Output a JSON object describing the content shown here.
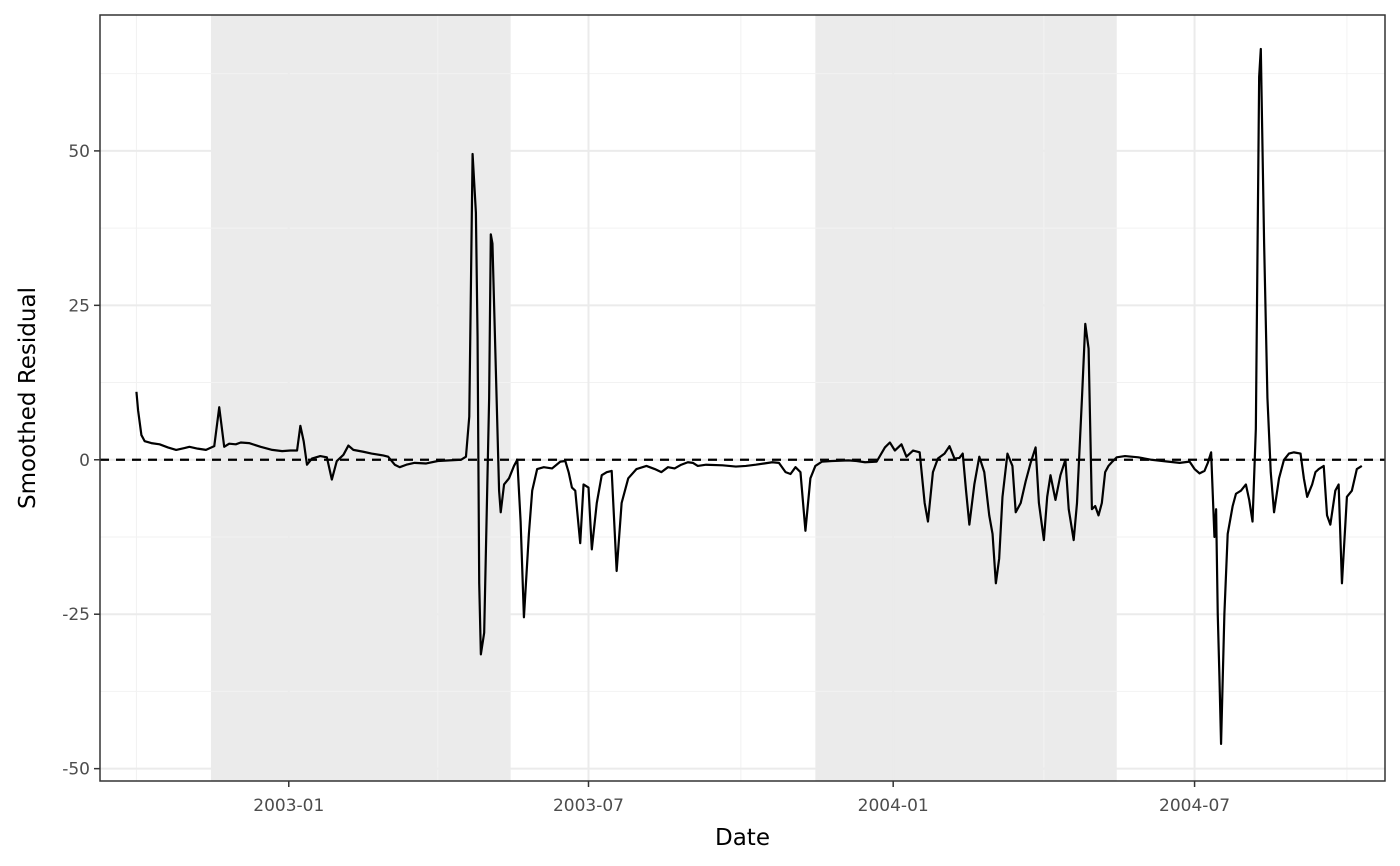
{
  "chart_data": {
    "type": "line",
    "xlabel": "Date",
    "ylabel": "Smoothed Residual",
    "x_ticks": [
      "2003-01",
      "2003-07",
      "2004-01",
      "2004-07"
    ],
    "y_ticks": [
      "-50",
      "-25",
      "0",
      "25",
      "50"
    ],
    "xlim": [
      "2002-09-09",
      "2004-10-24"
    ],
    "ylim": [
      -52,
      72
    ],
    "grid": true,
    "reference_line": {
      "y": 0,
      "style": "dashed",
      "color": "#000000"
    },
    "shaded_periods": [
      {
        "from": "2002-11-15",
        "to": "2003-05-15",
        "color": "#ebebeb"
      },
      {
        "from": "2003-11-15",
        "to": "2004-05-15",
        "color": "#ebebeb"
      }
    ],
    "series": [
      {
        "color": "#000000",
        "points": [
          [
            "2002-10-01",
            11
          ],
          [
            "2002-10-02",
            8
          ],
          [
            "2002-10-04",
            4
          ],
          [
            "2002-10-06",
            3
          ],
          [
            "2002-10-10",
            2.7
          ],
          [
            "2002-10-15",
            2.5
          ],
          [
            "2002-10-20",
            2
          ],
          [
            "2002-10-25",
            1.6
          ],
          [
            "2002-10-30",
            1.9
          ],
          [
            "2002-11-02",
            2.1
          ],
          [
            "2002-11-07",
            1.8
          ],
          [
            "2002-11-12",
            1.6
          ],
          [
            "2002-11-17",
            2.2
          ],
          [
            "2002-11-20",
            8.5
          ],
          [
            "2002-11-23",
            2.1
          ],
          [
            "2002-11-26",
            2.6
          ],
          [
            "2002-11-30",
            2.5
          ],
          [
            "2002-12-03",
            2.8
          ],
          [
            "2002-12-08",
            2.7
          ],
          [
            "2002-12-15",
            2.1
          ],
          [
            "2002-12-22",
            1.6
          ],
          [
            "2002-12-28",
            1.4
          ],
          [
            "2003-01-02",
            1.5
          ],
          [
            "2003-01-06",
            1.5
          ],
          [
            "2003-01-08",
            5.5
          ],
          [
            "2003-01-10",
            3
          ],
          [
            "2003-01-12",
            -0.8
          ],
          [
            "2003-01-15",
            0.2
          ],
          [
            "2003-01-20",
            0.6
          ],
          [
            "2003-01-24",
            0.4
          ],
          [
            "2003-01-27",
            -3.2
          ],
          [
            "2003-01-30",
            -0.2
          ],
          [
            "2003-02-03",
            0.8
          ],
          [
            "2003-02-06",
            2.3
          ],
          [
            "2003-02-09",
            1.6
          ],
          [
            "2003-02-15",
            1.3
          ],
          [
            "2003-02-20",
            1
          ],
          [
            "2003-02-27",
            0.7
          ],
          [
            "2003-03-02",
            0.5
          ],
          [
            "2003-03-06",
            -0.8
          ],
          [
            "2003-03-09",
            -1.2
          ],
          [
            "2003-03-13",
            -0.8
          ],
          [
            "2003-03-18",
            -0.5
          ],
          [
            "2003-03-25",
            -0.6
          ],
          [
            "2003-04-01",
            -0.2
          ],
          [
            "2003-04-08",
            -0.1
          ],
          [
            "2003-04-15",
            0
          ],
          [
            "2003-04-18",
            0.5
          ],
          [
            "2003-04-20",
            7
          ],
          [
            "2003-04-22",
            49.5
          ],
          [
            "2003-04-24",
            40
          ],
          [
            "2003-04-25",
            20
          ],
          [
            "2003-04-26",
            -20
          ],
          [
            "2003-04-27",
            -31.5
          ],
          [
            "2003-04-29",
            -28
          ],
          [
            "2003-05-02",
            10
          ],
          [
            "2003-05-03",
            36.5
          ],
          [
            "2003-05-04",
            35
          ],
          [
            "2003-05-06",
            15
          ],
          [
            "2003-05-08",
            -5
          ],
          [
            "2003-05-09",
            -8.5
          ],
          [
            "2003-05-11",
            -4
          ],
          [
            "2003-05-14",
            -3
          ],
          [
            "2003-05-17",
            -1
          ],
          [
            "2003-05-19",
            0
          ],
          [
            "2003-05-21",
            -10
          ],
          [
            "2003-05-23",
            -25.5
          ],
          [
            "2003-05-26",
            -12
          ],
          [
            "2003-05-28",
            -5
          ],
          [
            "2003-05-31",
            -1.5
          ],
          [
            "2003-06-04",
            -1.2
          ],
          [
            "2003-06-09",
            -1.4
          ],
          [
            "2003-06-14",
            -0.3
          ],
          [
            "2003-06-17",
            -0.2
          ],
          [
            "2003-06-19",
            -2
          ],
          [
            "2003-06-21",
            -4.5
          ],
          [
            "2003-06-23",
            -5
          ],
          [
            "2003-06-26",
            -13.5
          ],
          [
            "2003-06-28",
            -4
          ],
          [
            "2003-07-01",
            -4.5
          ],
          [
            "2003-07-03",
            -14.5
          ],
          [
            "2003-07-06",
            -7
          ],
          [
            "2003-07-09",
            -2.5
          ],
          [
            "2003-07-12",
            -2
          ],
          [
            "2003-07-15",
            -1.8
          ],
          [
            "2003-07-18",
            -18
          ],
          [
            "2003-07-21",
            -7
          ],
          [
            "2003-07-25",
            -3
          ],
          [
            "2003-07-30",
            -1.5
          ],
          [
            "2003-08-05",
            -1
          ],
          [
            "2003-08-10",
            -1.5
          ],
          [
            "2003-08-14",
            -2
          ],
          [
            "2003-08-18",
            -1.2
          ],
          [
            "2003-08-22",
            -1.4
          ],
          [
            "2003-08-26",
            -0.8
          ],
          [
            "2003-08-30",
            -0.4
          ],
          [
            "2003-09-02",
            -0.5
          ],
          [
            "2003-09-05",
            -1
          ],
          [
            "2003-09-10",
            -0.8
          ],
          [
            "2003-09-20",
            -0.9
          ],
          [
            "2003-09-28",
            -1.1
          ],
          [
            "2003-10-04",
            -1
          ],
          [
            "2003-10-10",
            -0.8
          ],
          [
            "2003-10-15",
            -0.6
          ],
          [
            "2003-10-20",
            -0.4
          ],
          [
            "2003-10-24",
            -0.5
          ],
          [
            "2003-10-28",
            -2
          ],
          [
            "2003-10-31",
            -2.3
          ],
          [
            "2003-11-03",
            -1.2
          ],
          [
            "2003-11-06",
            -2
          ],
          [
            "2003-11-09",
            -11.5
          ],
          [
            "2003-11-12",
            -3
          ],
          [
            "2003-11-15",
            -1
          ],
          [
            "2003-11-19",
            -0.3
          ],
          [
            "2003-11-25",
            -0.2
          ],
          [
            "2003-12-05",
            -0.1
          ],
          [
            "2003-12-10",
            -0.2
          ],
          [
            "2003-12-15",
            -0.4
          ],
          [
            "2003-12-22",
            -0.3
          ],
          [
            "2003-12-27",
            2
          ],
          [
            "2003-12-30",
            2.8
          ],
          [
            "2004-01-02",
            1.5
          ],
          [
            "2004-01-06",
            2.5
          ],
          [
            "2004-01-09",
            0.5
          ],
          [
            "2004-01-13",
            1.5
          ],
          [
            "2004-01-17",
            1.2
          ],
          [
            "2004-01-20",
            -7
          ],
          [
            "2004-01-22",
            -10
          ],
          [
            "2004-01-25",
            -2
          ],
          [
            "2004-01-28",
            0.2
          ],
          [
            "2004-02-01",
            1
          ],
          [
            "2004-02-04",
            2.2
          ],
          [
            "2004-02-07",
            0.2
          ],
          [
            "2004-02-10",
            0.3
          ],
          [
            "2004-02-12",
            1
          ],
          [
            "2004-02-14",
            -5
          ],
          [
            "2004-02-16",
            -10.5
          ],
          [
            "2004-02-19",
            -4
          ],
          [
            "2004-02-22",
            0.5
          ],
          [
            "2004-02-25",
            -2
          ],
          [
            "2004-02-28",
            -9
          ],
          [
            "2004-03-01",
            -12
          ],
          [
            "2004-03-03",
            -20
          ],
          [
            "2004-03-05",
            -16
          ],
          [
            "2004-03-07",
            -6
          ],
          [
            "2004-03-10",
            1
          ],
          [
            "2004-03-13",
            -1
          ],
          [
            "2004-03-15",
            -8.5
          ],
          [
            "2004-03-18",
            -7
          ],
          [
            "2004-03-21",
            -3.5
          ],
          [
            "2004-03-24",
            -0.5
          ],
          [
            "2004-03-27",
            2
          ],
          [
            "2004-03-29",
            -7
          ],
          [
            "2004-04-01",
            -13
          ],
          [
            "2004-04-03",
            -6
          ],
          [
            "2004-04-05",
            -2.5
          ],
          [
            "2004-04-08",
            -6.5
          ],
          [
            "2004-04-11",
            -2.5
          ],
          [
            "2004-04-14",
            0
          ],
          [
            "2004-04-16",
            -8
          ],
          [
            "2004-04-19",
            -13
          ],
          [
            "2004-04-21",
            -7
          ],
          [
            "2004-04-24",
            10
          ],
          [
            "2004-04-26",
            22
          ],
          [
            "2004-04-28",
            18
          ],
          [
            "2004-04-30",
            -8
          ],
          [
            "2004-05-02",
            -7.5
          ],
          [
            "2004-05-04",
            -9
          ],
          [
            "2004-05-06",
            -7
          ],
          [
            "2004-05-08",
            -2
          ],
          [
            "2004-05-10",
            -1
          ],
          [
            "2004-05-12",
            -0.4
          ],
          [
            "2004-05-15",
            0.4
          ],
          [
            "2004-05-20",
            0.6
          ],
          [
            "2004-05-28",
            0.4
          ],
          [
            "2004-06-05",
            0
          ],
          [
            "2004-06-15",
            -0.3
          ],
          [
            "2004-06-22",
            -0.5
          ],
          [
            "2004-06-28",
            -0.3
          ],
          [
            "2004-07-01",
            -1.5
          ],
          [
            "2004-07-04",
            -2.2
          ],
          [
            "2004-07-07",
            -1.8
          ],
          [
            "2004-07-09",
            -0.5
          ],
          [
            "2004-07-11",
            1.2
          ],
          [
            "2004-07-13",
            -12.5
          ],
          [
            "2004-07-14",
            -8
          ],
          [
            "2004-07-15",
            -25
          ],
          [
            "2004-07-16",
            -35
          ],
          [
            "2004-07-17",
            -46
          ],
          [
            "2004-07-19",
            -25
          ],
          [
            "2004-07-21",
            -12
          ],
          [
            "2004-07-24",
            -7.5
          ],
          [
            "2004-07-26",
            -5.5
          ],
          [
            "2004-07-29",
            -5
          ],
          [
            "2004-08-01",
            -4
          ],
          [
            "2004-08-03",
            -6.5
          ],
          [
            "2004-08-05",
            -10
          ],
          [
            "2004-08-07",
            5
          ],
          [
            "2004-08-09",
            62
          ],
          [
            "2004-08-10",
            66.5
          ],
          [
            "2004-08-12",
            35
          ],
          [
            "2004-08-14",
            10
          ],
          [
            "2004-08-16",
            -2
          ],
          [
            "2004-08-18",
            -8.5
          ],
          [
            "2004-08-21",
            -3
          ],
          [
            "2004-08-24",
            0
          ],
          [
            "2004-08-27",
            1
          ],
          [
            "2004-08-30",
            1.2
          ],
          [
            "2004-09-03",
            1
          ],
          [
            "2004-09-05",
            -3
          ],
          [
            "2004-09-07",
            -6
          ],
          [
            "2004-09-10",
            -4
          ],
          [
            "2004-09-12",
            -2
          ],
          [
            "2004-09-14",
            -1.5
          ],
          [
            "2004-09-17",
            -1
          ],
          [
            "2004-09-19",
            -9
          ],
          [
            "2004-09-21",
            -10.5
          ],
          [
            "2004-09-24",
            -5
          ],
          [
            "2004-09-26",
            -4
          ],
          [
            "2004-09-28",
            -20
          ],
          [
            "2004-10-01",
            -6
          ],
          [
            "2004-10-04",
            -5
          ],
          [
            "2004-10-07",
            -1.5
          ],
          [
            "2004-10-10",
            -1
          ]
        ]
      }
    ]
  }
}
